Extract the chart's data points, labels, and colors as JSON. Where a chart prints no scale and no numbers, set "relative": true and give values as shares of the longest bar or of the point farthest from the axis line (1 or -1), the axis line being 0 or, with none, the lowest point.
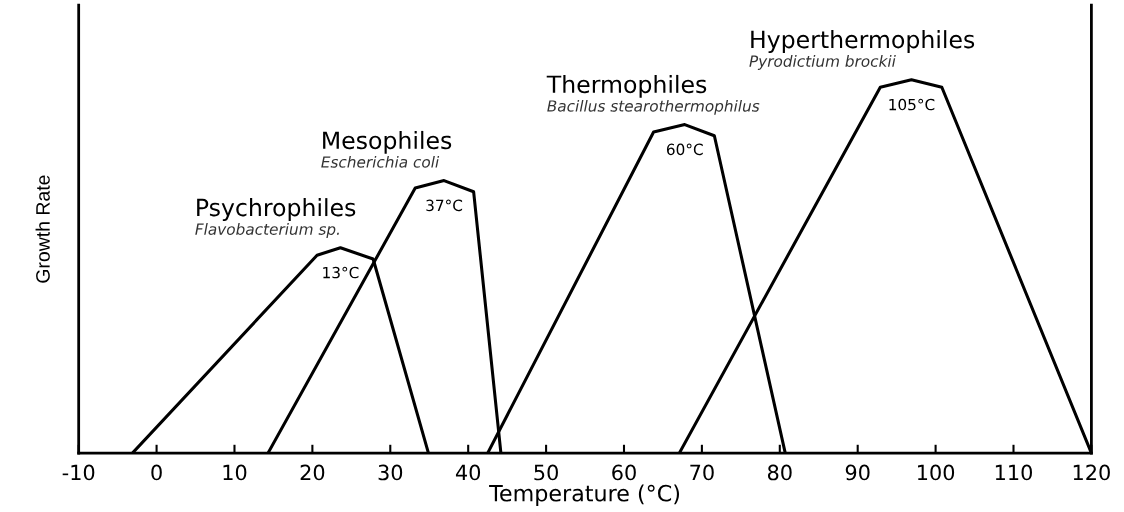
{
  "chart_data": {
    "type": "line",
    "relative": true,
    "xlabel": "Temperature (°C)",
    "ylabel": "Growth Rate",
    "xlim": [
      -10,
      120
    ],
    "xticks": [
      -10,
      0,
      10,
      20,
      30,
      40,
      50,
      60,
      70,
      80,
      90,
      100,
      110,
      120
    ],
    "tick_labels": "x",
    "grid": false,
    "marker": "none",
    "line_style": "solid",
    "series": [
      {
        "color": "#000000",
        "x": [
          -3.1,
          20.6,
          23.6,
          27.8,
          34.9
        ],
        "values": [
          0,
          0.53,
          0.55,
          0.52,
          0
        ]
      },
      {
        "color": "#000000",
        "x": [
          14.3,
          33.2,
          36.9,
          40.7,
          44.2
        ],
        "values": [
          0,
          0.71,
          0.73,
          0.7,
          0
        ]
      },
      {
        "color": "#000000",
        "x": [
          42.5,
          63.8,
          67.8,
          71.6,
          80.7
        ],
        "values": [
          0,
          0.86,
          0.88,
          0.85,
          0
        ]
      },
      {
        "color": "#000000",
        "x": [
          67.1,
          92.9,
          96.9,
          100.8,
          120
        ],
        "values": [
          0,
          0.98,
          1,
          0.98,
          0
        ]
      }
    ],
    "annotations": [
      "Psychrophiles",
      "Flavobacterium sp.",
      "13°C",
      "Mesophiles",
      "Escherichia coli",
      "37°C",
      "Thermophiles",
      "Bacillus stearothermophilus",
      "60°C",
      "Hyperthermophiles",
      "Pyrodictium brockii",
      "105°C"
    ]
  }
}
